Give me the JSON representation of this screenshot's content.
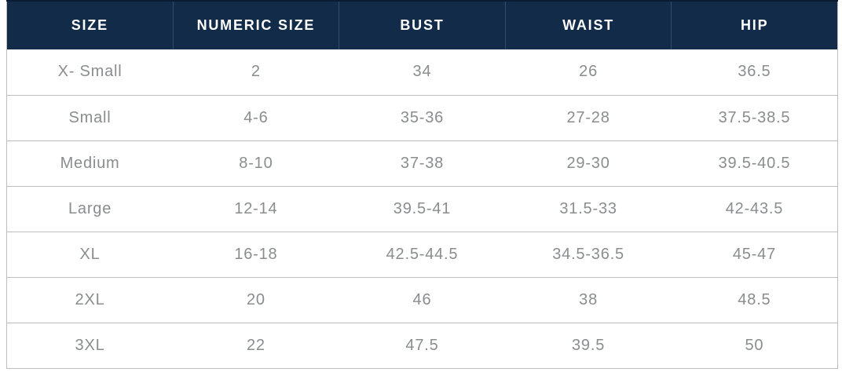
{
  "table": {
    "columns": [
      {
        "key": "size",
        "label": "SIZE"
      },
      {
        "key": "numeric-size",
        "label": "NUMERIC SIZE"
      },
      {
        "key": "bust",
        "label": "BUST"
      },
      {
        "key": "waist",
        "label": "WAIST"
      },
      {
        "key": "hip",
        "label": "HIP"
      }
    ],
    "rows": [
      [
        "X- Small",
        "2",
        "34",
        "26",
        "36.5"
      ],
      [
        "Small",
        "4-6",
        "35-36",
        "27-28",
        "37.5-38.5"
      ],
      [
        "Medium",
        "8-10",
        "37-38",
        "29-30",
        "39.5-40.5"
      ],
      [
        "Large",
        "12-14",
        "39.5-41",
        "31.5-33",
        "42-43.5"
      ],
      [
        "XL",
        "16-18",
        "42.5-44.5",
        "34.5-36.5",
        "45-47"
      ],
      [
        "2XL",
        "20",
        "46",
        "38",
        "48.5"
      ],
      [
        "3XL",
        "22",
        "47.5",
        "39.5",
        "50"
      ]
    ]
  },
  "colors": {
    "header_bg": "#112B49",
    "header_text": "#FFFFFF",
    "header_divider": "#2E4C6D",
    "header_top_border": "#0A1C31",
    "body_text": "#8A8C8E",
    "row_border": "#BDBDBD",
    "page_bg": "#FFFFFF"
  }
}
